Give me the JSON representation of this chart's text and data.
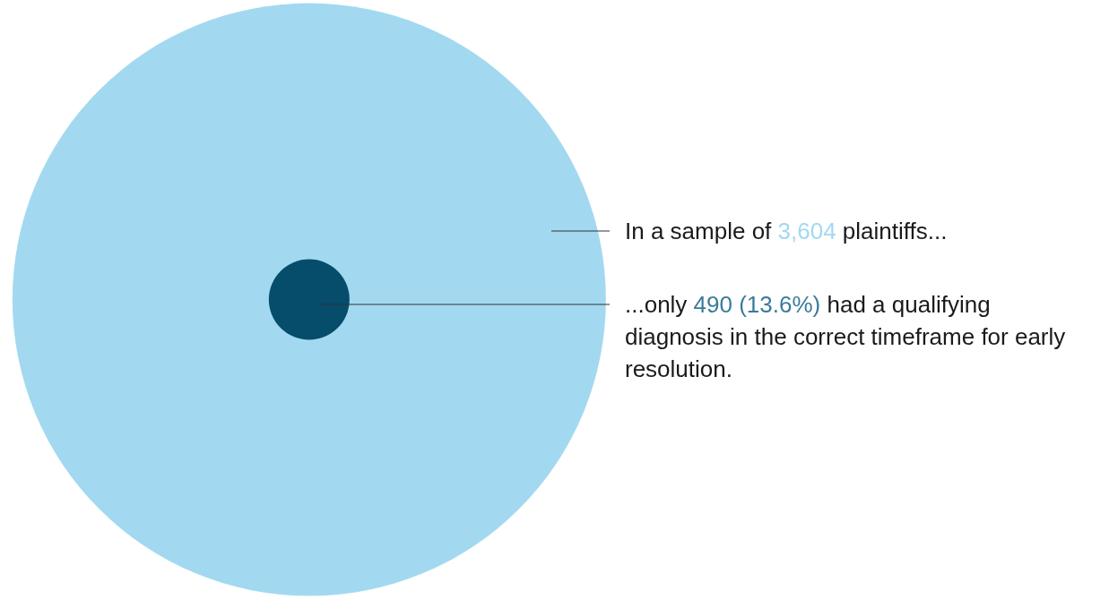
{
  "chart_data": {
    "type": "other",
    "categories": [
      null,
      null
    ],
    "values": [
      3604,
      490
    ],
    "colors": [
      "#a2d9f0",
      "#054d6b"
    ],
    "value_labels": [
      "3,604",
      "490 (13.6%)"
    ],
    "annotations": [
      "In a sample of",
      "plaintiffs...",
      "...only",
      "had a qualifying diagnosis in the correct timeframe for early resolution."
    ]
  }
}
